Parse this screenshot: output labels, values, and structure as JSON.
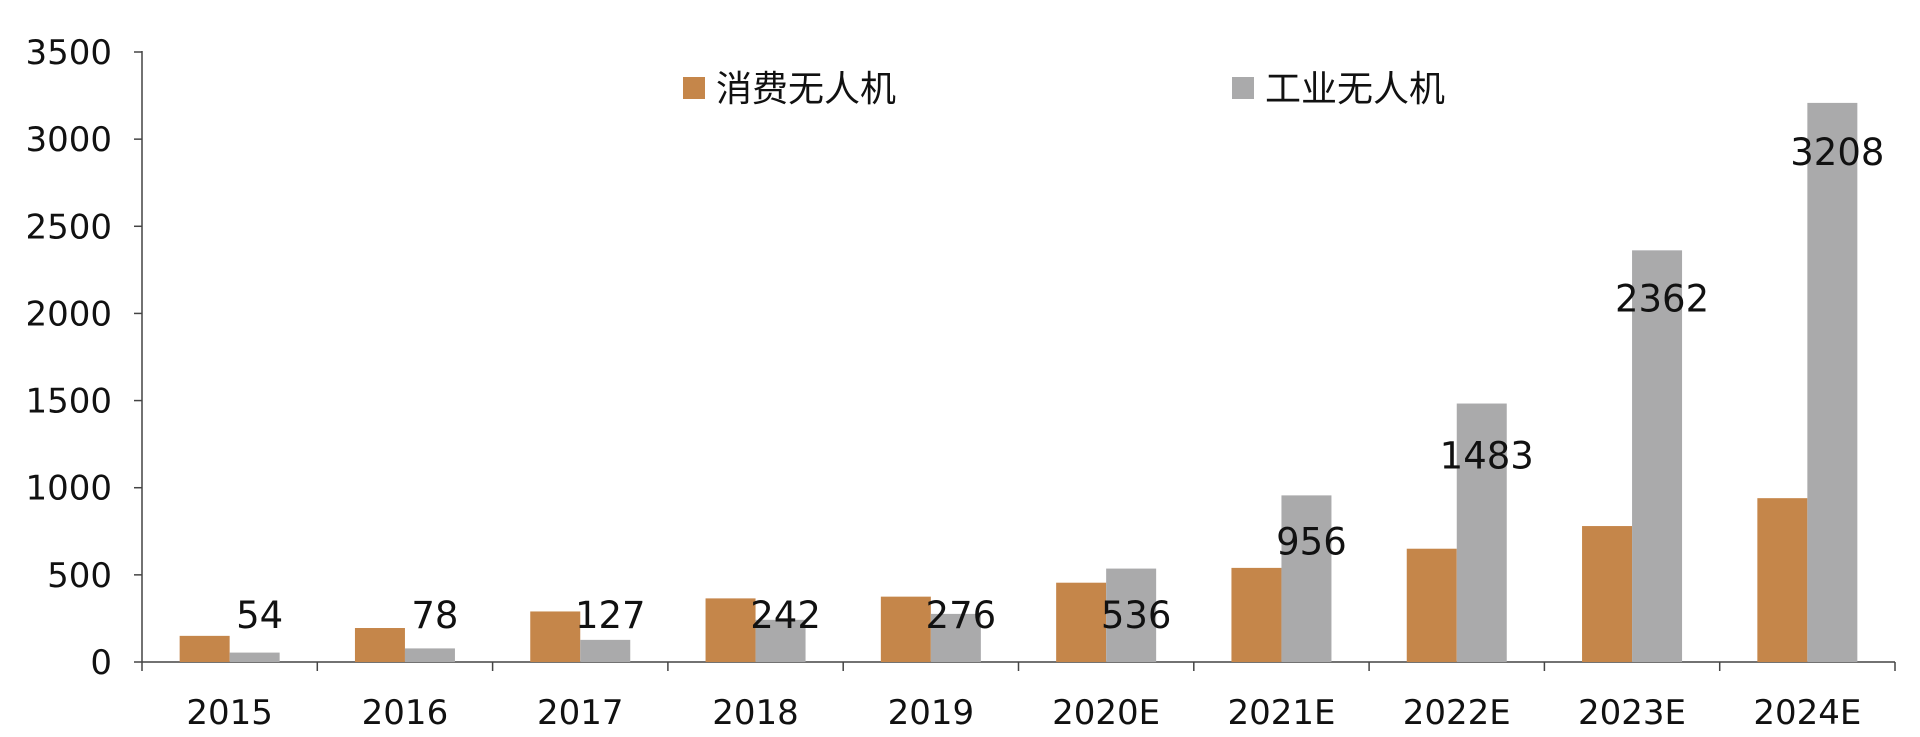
{
  "chart_data": {
    "type": "bar",
    "title": "",
    "xlabel": "",
    "ylabel": "",
    "ylim": [
      0,
      3500
    ],
    "yticks": [
      0,
      500,
      1000,
      1500,
      2000,
      2500,
      3000,
      3500
    ],
    "categories": [
      "2015",
      "2016",
      "2017",
      "2018",
      "2019",
      "2020E",
      "2021E",
      "2022E",
      "2023E",
      "2024E"
    ],
    "series": [
      {
        "name": "消费无人机",
        "color": "#C5864A",
        "values": [
          150,
          195,
          290,
          365,
          375,
          455,
          540,
          650,
          780,
          940
        ]
      },
      {
        "name": "工业无人机",
        "color": "#AAAAAB",
        "values": [
          54,
          78,
          127,
          242,
          276,
          536,
          956,
          1483,
          2362,
          3208
        ]
      }
    ],
    "data_labels": {
      "series": "工业无人机",
      "values": [
        "54",
        "78",
        "127",
        "242",
        "276",
        "536",
        "956",
        "1483",
        "2362",
        "3208"
      ]
    },
    "legend_position": "top-center",
    "grid": false
  }
}
